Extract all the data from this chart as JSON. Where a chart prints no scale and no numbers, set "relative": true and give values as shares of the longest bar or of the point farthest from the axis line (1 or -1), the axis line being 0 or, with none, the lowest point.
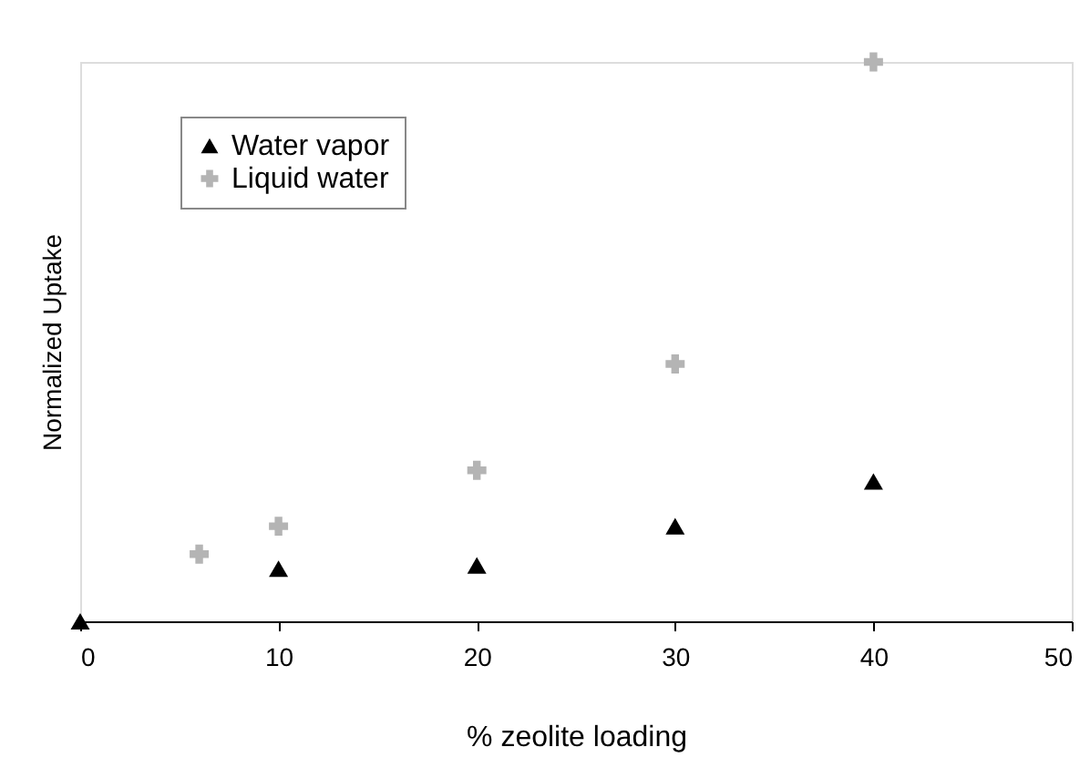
{
  "chart_data": {
    "type": "scatter",
    "relative": true,
    "xlabel": "% zeolite loading",
    "ylabel": "Normalized Uptake",
    "xlim": [
      0,
      50
    ],
    "xticks": [
      0,
      10,
      20,
      30,
      40,
      50
    ],
    "grid": false,
    "legend": "top left",
    "series": [
      {
        "name": "Water vapor",
        "color": "#000000",
        "marker": "triangle",
        "x": [
          0,
          10,
          20,
          30,
          40
        ],
        "values": [
          0,
          0.094,
          0.1,
          0.17,
          0.25
        ]
      },
      {
        "name": "Liquid water",
        "color": "#b4b4b4",
        "marker": "cross",
        "x": [
          6,
          10,
          20,
          30,
          40
        ],
        "values": [
          0.12,
          0.17,
          0.27,
          0.46,
          1
        ]
      }
    ]
  }
}
